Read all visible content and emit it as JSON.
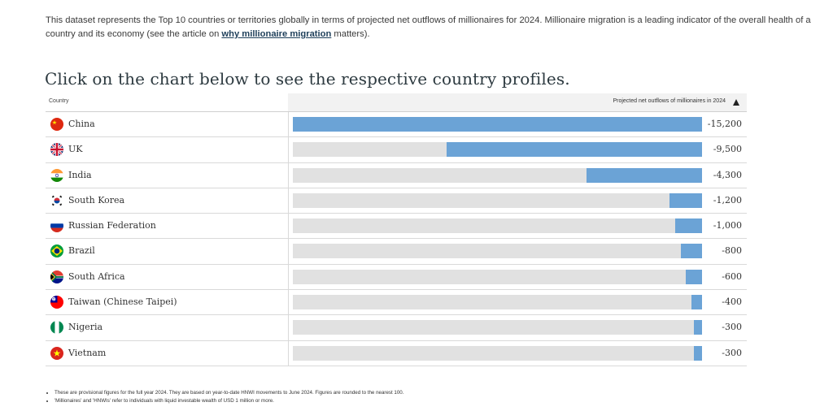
{
  "intro": {
    "text_before": "This dataset represents the Top 10 countries or territories globally in terms of projected net outflows of millionaires for 2024. Millionaire migration is a leading indicator of the overall health of a country and its economy (see the article on ",
    "link": "why millionaire migration",
    "text_after": " matters)."
  },
  "heading": "Click on the chart below to see the respective country profiles.",
  "table": {
    "country_header": "Country",
    "value_header": "Projected net outflows of millionaires in 2024",
    "sort_icon": "sort-ascending-triangle"
  },
  "chart_data": {
    "type": "bar",
    "orientation": "horizontal",
    "categories": [
      "China",
      "UK",
      "India",
      "South Korea",
      "Russian Federation",
      "Brazil",
      "South Africa",
      "Taiwan (Chinese Taipei)",
      "Nigeria",
      "Vietnam"
    ],
    "values": [
      -15200,
      -9500,
      -4300,
      -1200,
      -1000,
      -800,
      -600,
      -400,
      -300,
      -300
    ],
    "value_labels": [
      "-15,200",
      "-9,500",
      "-4,300",
      "-1,200",
      "-1,000",
      "-800",
      "-600",
      "-400",
      "-300",
      "-300"
    ],
    "flags": [
      "china-flag-icon",
      "uk-flag-icon",
      "india-flag-icon",
      "south-korea-flag-icon",
      "russia-flag-icon",
      "brazil-flag-icon",
      "south-africa-flag-icon",
      "taiwan-flag-icon",
      "nigeria-flag-icon",
      "vietnam-flag-icon"
    ],
    "xlabel": "Projected net outflows of millionaires in 2024",
    "ylabel": "Country",
    "xlim": [
      -15200,
      0
    ],
    "bar_color": "#6ba3d6",
    "track_color": "#e1e1e1"
  },
  "notes": [
    "These are provisional figures for the full year 2024. They are based on year-to-date HNWI movements to June 2024. Figures are rounded to the nearest 100.",
    "'Millionaires' and 'HNWIs' refer to individuals with liquid investable wealth of USD 1 million or more."
  ]
}
